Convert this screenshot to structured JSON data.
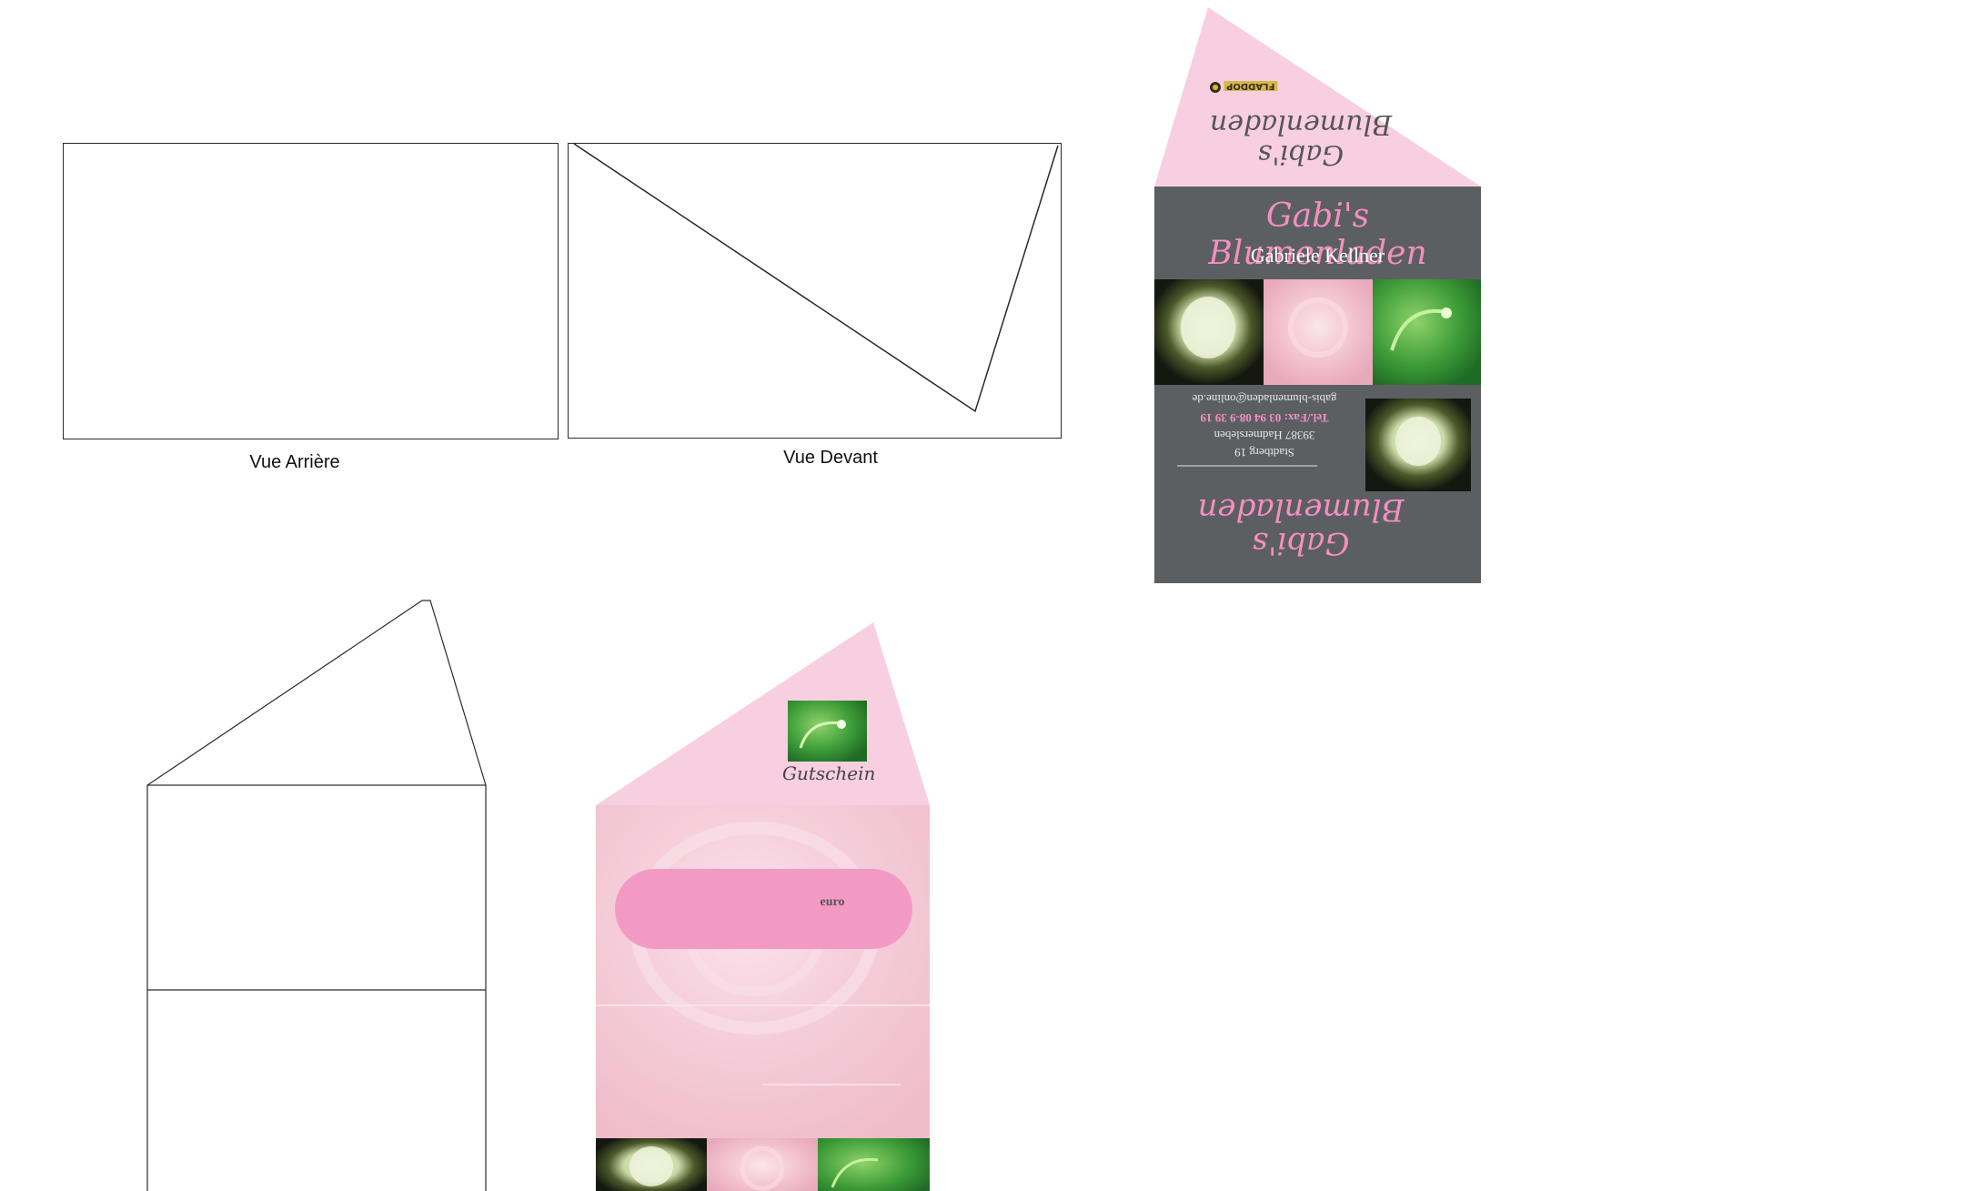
{
  "templates": {
    "back_view_caption": "Vue Arrière",
    "front_view_caption": "Vue Devant"
  },
  "card_outside": {
    "shop_name": "Gabi's Blumenladen",
    "owner_name": "Gabriele Kellner",
    "roof_script_flipped": "Gabi's Blumenladen",
    "roof_logo_text": "FLADDOP",
    "address_street": "Stadtberg 19",
    "address_city": "39387 Hadmersleben",
    "phone": "Tel./Fax: 03 94 08-9 39 19",
    "email": "gabis-blumenladen@online.de",
    "bottom_script_flipped": "Gabi's Blumenladen"
  },
  "card_inside": {
    "voucher_title": "Gutschein",
    "currency_label": "euro"
  },
  "colors": {
    "pink_light": "#f7cfe0",
    "pink_accent": "#f29ac4",
    "pink_text": "#f48fc0",
    "slate": "#5c5f62",
    "green_photo": "#3d9a3a",
    "rose_photo": "#f2bfcd",
    "dark_bud": "#1c1f14"
  }
}
